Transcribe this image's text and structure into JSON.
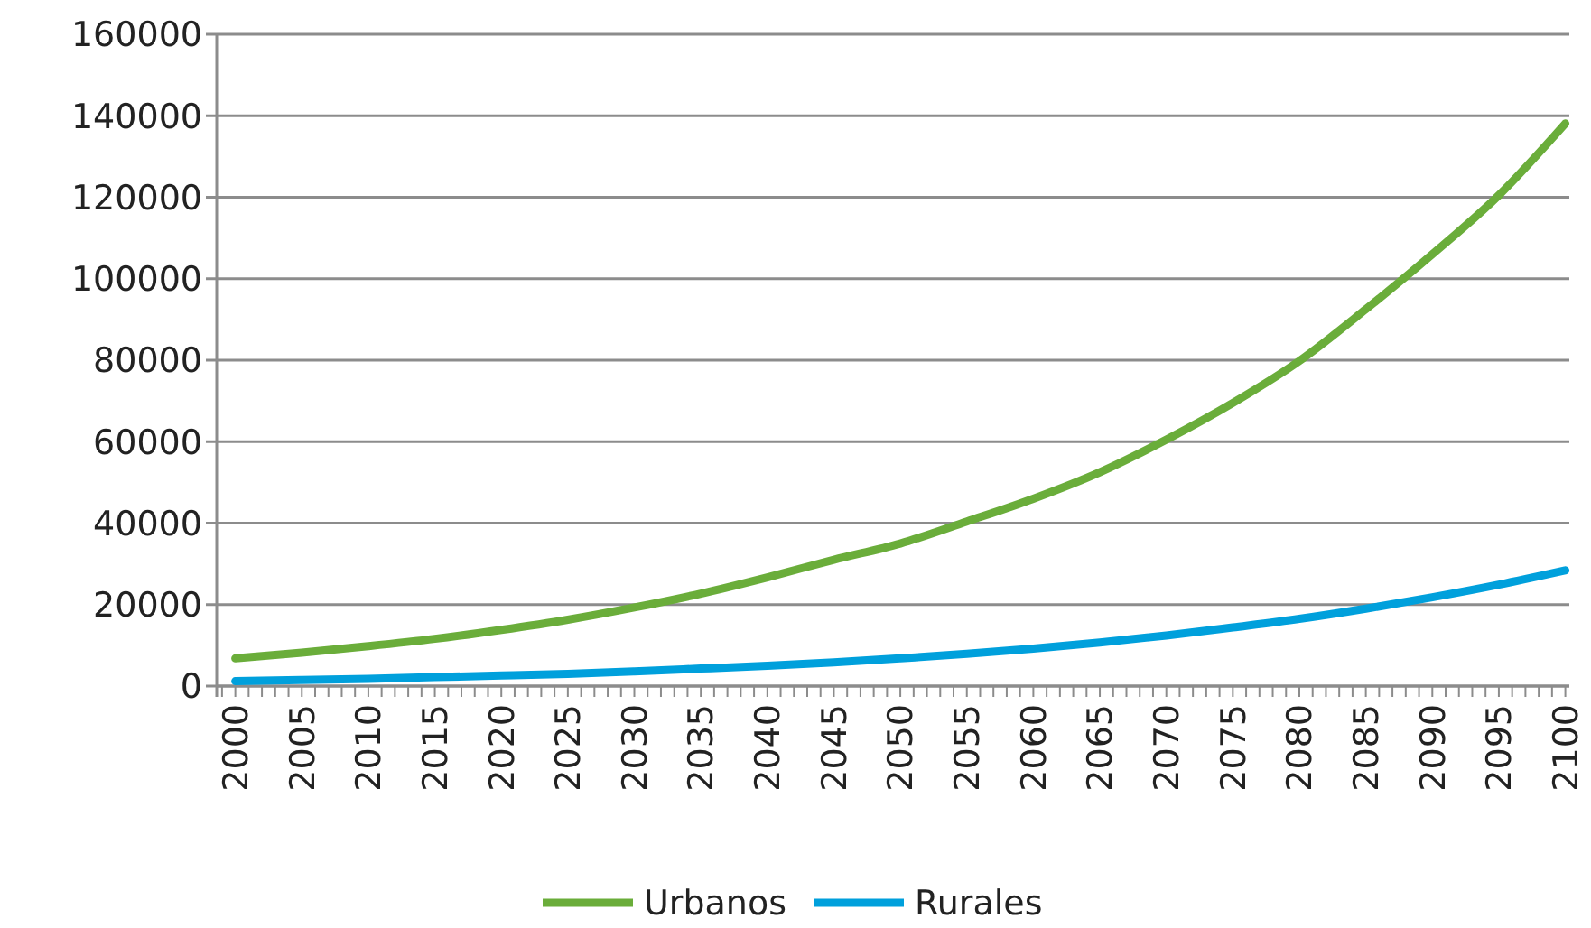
{
  "chart_data": {
    "type": "line",
    "x": [
      2000,
      2005,
      2010,
      2015,
      2020,
      2025,
      2030,
      2035,
      2040,
      2045,
      2050,
      2055,
      2060,
      2065,
      2070,
      2075,
      2080,
      2085,
      2090,
      2095,
      2100
    ],
    "series": [
      {
        "name": "Urbanos",
        "color": "#6aad3a",
        "values": [
          6800,
          8200,
          9800,
          11600,
          13800,
          16300,
          19300,
          22700,
          26700,
          31000,
          35000,
          40400,
          46000,
          52500,
          60500,
          69500,
          79800,
          92500,
          106000,
          120500,
          138100
        ]
      },
      {
        "name": "Rurales",
        "color": "#00a0dc",
        "values": [
          1200,
          1500,
          1800,
          2200,
          2600,
          3000,
          3600,
          4300,
          5000,
          5800,
          6800,
          7900,
          9200,
          10700,
          12400,
          14400,
          16500,
          19000,
          21800,
          24900,
          28400
        ]
      }
    ],
    "xlim": [
      1998.6,
      2100.3
    ],
    "xticks": [
      2000,
      2005,
      2010,
      2015,
      2020,
      2025,
      2030,
      2035,
      2040,
      2045,
      2050,
      2055,
      2060,
      2065,
      2070,
      2075,
      2080,
      2085,
      2090,
      2095,
      2100
    ],
    "ylim": [
      0,
      160000
    ],
    "yticks": [
      0,
      20000,
      40000,
      60000,
      80000,
      100000,
      120000,
      140000,
      160000
    ],
    "grid": "y",
    "legend": "bottom",
    "marker": "none",
    "line_style": "solid"
  }
}
